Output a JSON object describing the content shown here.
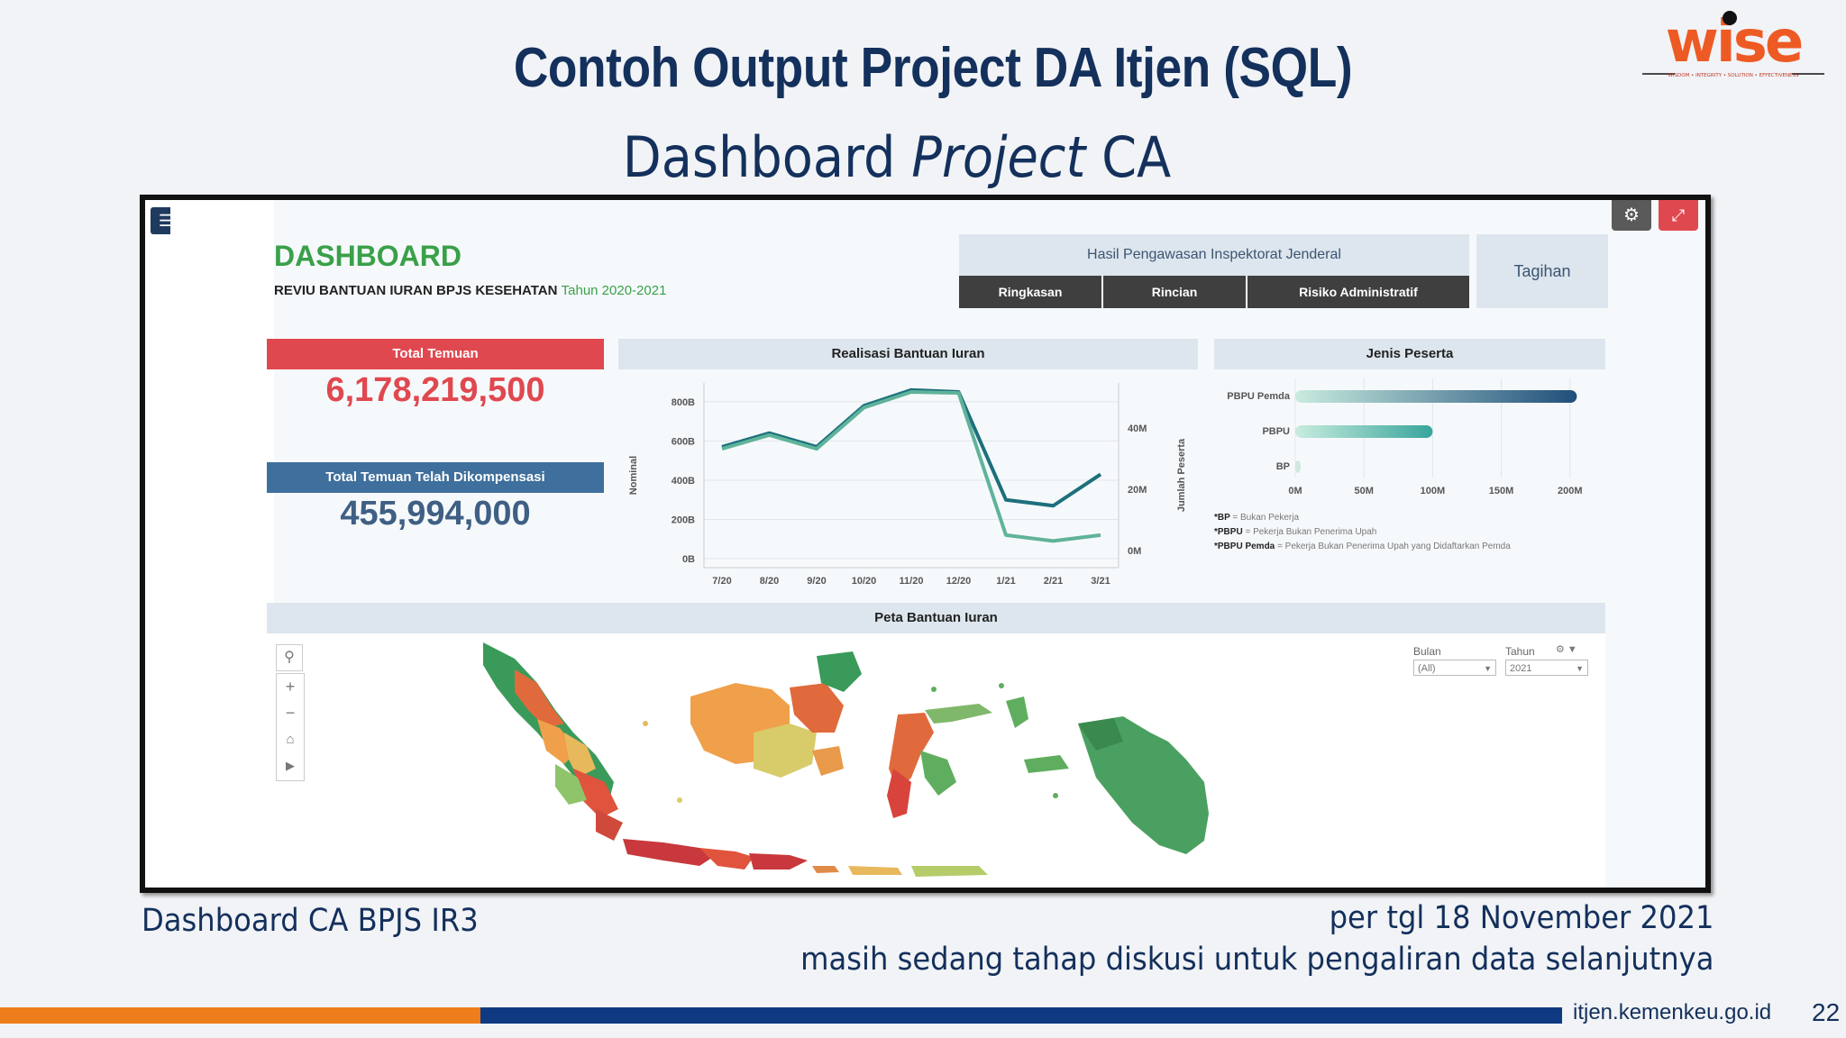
{
  "slide": {
    "title": "Contoh Output Project DA Itjen (SQL)",
    "subtitle_a": "Dashboard",
    "subtitle_b": "Project",
    "subtitle_c": "CA",
    "logo_text": "wise",
    "logo_tagline": "WISDOM • INTEGRITY • SOLUTION • EFFECTIVENESS",
    "caption_left": "Dashboard CA BPJS IR3",
    "caption_right_1": "per tgl 18 November 2021",
    "caption_right_2": "masih sedang tahap diskusi untuk pengaliran data selanjutnya",
    "footer_url": "itjen.kemenkeu.go.id",
    "page_number": "22"
  },
  "dashboard": {
    "title": "DASHBOARD",
    "subtitle": "REVIU BANTUAN IURAN BPJS KESEHATAN",
    "subtitle_year": "Tahun 2020-2021",
    "nav_header": "Hasil Pengawasan Inspektorat Jenderal",
    "nav_buttons": [
      "Ringkasan",
      "Rincian",
      "Risiko Administratif"
    ],
    "tagihan": "Tagihan",
    "kpi": [
      {
        "label": "Total Temuan",
        "value": "6,178,219,500",
        "head_color": "#e0484f",
        "value_color": "#e0484f"
      },
      {
        "label": "Total Temuan Telah Dikompensasi",
        "value": "455,994,000",
        "head_color": "#3f6f9c",
        "value_color": "#3f5f84"
      }
    ],
    "map_title": "Peta Bantuan Iuran",
    "filters": {
      "bulan_label": "Bulan",
      "bulan_value": "(All)",
      "tahun_label": "Tahun",
      "tahun_value": "2021"
    }
  },
  "chart_data": [
    {
      "type": "line",
      "title": "Realisasi Bantuan Iuran",
      "ylabel": "Nominal",
      "y2label": "Jumlah Peserta",
      "categories": [
        "7/20",
        "8/20",
        "9/20",
        "10/20",
        "11/20",
        "12/20",
        "1/21",
        "2/21",
        "3/21"
      ],
      "y_ticks": [
        "0B",
        "200B",
        "400B",
        "600B",
        "800B"
      ],
      "y2_ticks": [
        "0M",
        "20M",
        "40M"
      ],
      "ylim": [
        0,
        850
      ],
      "series": [
        {
          "values": [
            570,
            640,
            570,
            780,
            860,
            850,
            300,
            270,
            430
          ],
          "axis": "left",
          "color": "#1d6f7d"
        },
        {
          "values": [
            560,
            630,
            560,
            770,
            850,
            845,
            120,
            90,
            120
          ],
          "axis": "left",
          "color": "#5fb39a"
        }
      ]
    },
    {
      "type": "bar",
      "title": "Jenis Peserta",
      "categories": [
        "PBPU Pemda",
        "PBPU",
        "BP"
      ],
      "values": [
        205,
        100,
        1
      ],
      "x_ticks": [
        "0M",
        "50M",
        "100M",
        "150M",
        "200M"
      ],
      "xlim": [
        0,
        210
      ],
      "notes": [
        {
          "key": "*BP",
          "text": "= Bukan Pekerja"
        },
        {
          "key": "*PBPU",
          "text": "= Pekerja Bukan Penerima Upah"
        },
        {
          "key": "*PBPU Pemda",
          "text": "= Pekerja Bukan Penerima Upah yang Didaftarkan Pemda"
        }
      ]
    }
  ]
}
